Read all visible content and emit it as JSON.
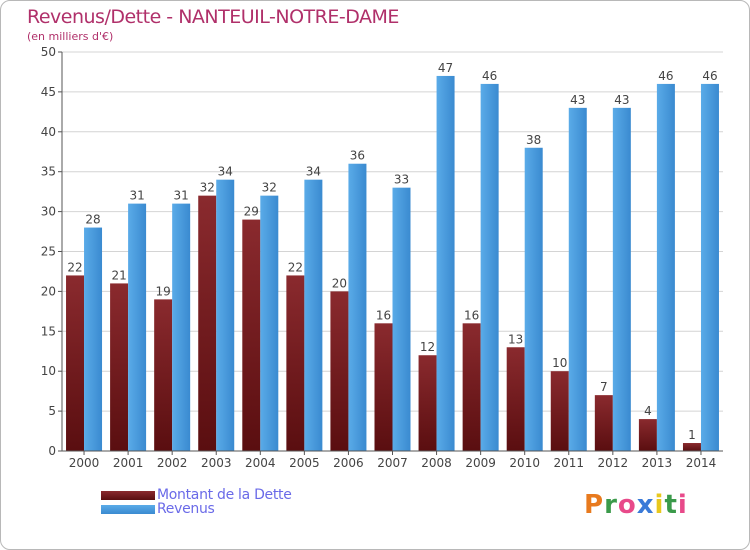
{
  "title": "Revenus/Dette - NANTEUIL-NOTRE-DAME",
  "subtitle": "(en milliers d'€)",
  "colors": {
    "dette": "#7a1f22",
    "revenus": "#4a9be0",
    "text": "#b0306a",
    "legend_text": "#6a6ae8",
    "grid": "#d4d4d4"
  },
  "legend": [
    {
      "label": "Montant de la Dette",
      "color": "#7a1f22"
    },
    {
      "label": "Revenus",
      "color": "#4a9be0"
    }
  ],
  "logo": {
    "text": "Proxiti",
    "letters": [
      "P",
      "r",
      "o",
      "x",
      "i",
      "t",
      "i"
    ],
    "colors": [
      "#e87a1e",
      "#3a9a4a",
      "#e84a8a",
      "#3a7ad8",
      "#e8c81e",
      "#3a9a4a",
      "#e84a8a"
    ]
  },
  "chart_data": {
    "type": "bar",
    "categories": [
      "2000",
      "2001",
      "2002",
      "2003",
      "2004",
      "2005",
      "2006",
      "2007",
      "2008",
      "2009",
      "2010",
      "2011",
      "2012",
      "2013",
      "2014"
    ],
    "series": [
      {
        "name": "Montant de la Dette",
        "values": [
          22,
          21,
          19,
          32,
          29,
          22,
          20,
          16,
          12,
          16,
          13,
          10,
          7,
          4,
          1
        ]
      },
      {
        "name": "Revenus",
        "values": [
          28,
          31,
          31,
          34,
          32,
          34,
          36,
          33,
          47,
          46,
          38,
          43,
          43,
          46,
          46
        ]
      }
    ],
    "ylim": [
      0,
      50
    ],
    "yticks": [
      0,
      5,
      10,
      15,
      20,
      25,
      30,
      35,
      40,
      45,
      50
    ],
    "grid": true,
    "legend": "bottom-left"
  }
}
